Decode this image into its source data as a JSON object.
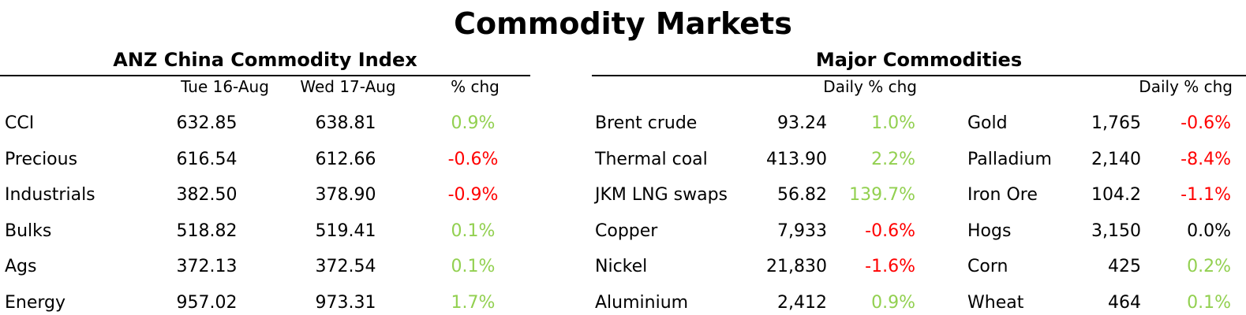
{
  "title": "Commodity Markets",
  "anz": {
    "title": "ANZ China Commodity Index",
    "col1": "Tue 16-Aug",
    "col2": "Wed 17-Aug",
    "col3": "% chg",
    "rows": [
      {
        "name": "CCI",
        "v1": "632.85",
        "v2": "638.81",
        "chg": "0.9%",
        "dir": "pos"
      },
      {
        "name": "Precious",
        "v1": "616.54",
        "v2": "612.66",
        "chg": "-0.6%",
        "dir": "neg"
      },
      {
        "name": "Industrials",
        "v1": "382.50",
        "v2": "378.90",
        "chg": "-0.9%",
        "dir": "neg"
      },
      {
        "name": "Bulks",
        "v1": "518.82",
        "v2": "519.41",
        "chg": "0.1%",
        "dir": "pos"
      },
      {
        "name": "Ags",
        "v1": "372.13",
        "v2": "372.54",
        "chg": "0.1%",
        "dir": "pos"
      },
      {
        "name": "Energy",
        "v1": "957.02",
        "v2": "973.31",
        "chg": "1.7%",
        "dir": "pos"
      }
    ]
  },
  "major": {
    "title": "Major Commodities",
    "hdr_left": "Daily % chg",
    "hdr_right": "Daily % chg",
    "left": [
      {
        "name": "Brent crude",
        "val": "93.24",
        "chg": "1.0%",
        "dir": "pos"
      },
      {
        "name": "Thermal coal",
        "val": "413.90",
        "chg": "2.2%",
        "dir": "pos"
      },
      {
        "name": "JKM LNG swaps",
        "val": "56.82",
        "chg": "139.7%",
        "dir": "pos"
      },
      {
        "name": "Copper",
        "val": "7,933",
        "chg": "-0.6%",
        "dir": "neg"
      },
      {
        "name": "Nickel",
        "val": "21,830",
        "chg": "-1.6%",
        "dir": "neg"
      },
      {
        "name": "Aluminium",
        "val": "2,412",
        "chg": "0.9%",
        "dir": "pos"
      }
    ],
    "right": [
      {
        "name": "Gold",
        "val": "1,765",
        "chg": "-0.6%",
        "dir": "neg"
      },
      {
        "name": "Palladium",
        "val": "2,140",
        "chg": "-8.4%",
        "dir": "neg"
      },
      {
        "name": "Iron Ore",
        "val": "104.2",
        "chg": "-1.1%",
        "dir": "neg"
      },
      {
        "name": "Hogs",
        "val": "3,150",
        "chg": "0.0%",
        "dir": "zero"
      },
      {
        "name": "Corn",
        "val": "425",
        "chg": "0.2%",
        "dir": "pos"
      },
      {
        "name": "Wheat",
        "val": "464",
        "chg": "0.1%",
        "dir": "pos"
      }
    ]
  },
  "colors": {
    "positive": "#92d050",
    "negative": "#ff0000",
    "neutral": "#000000"
  }
}
